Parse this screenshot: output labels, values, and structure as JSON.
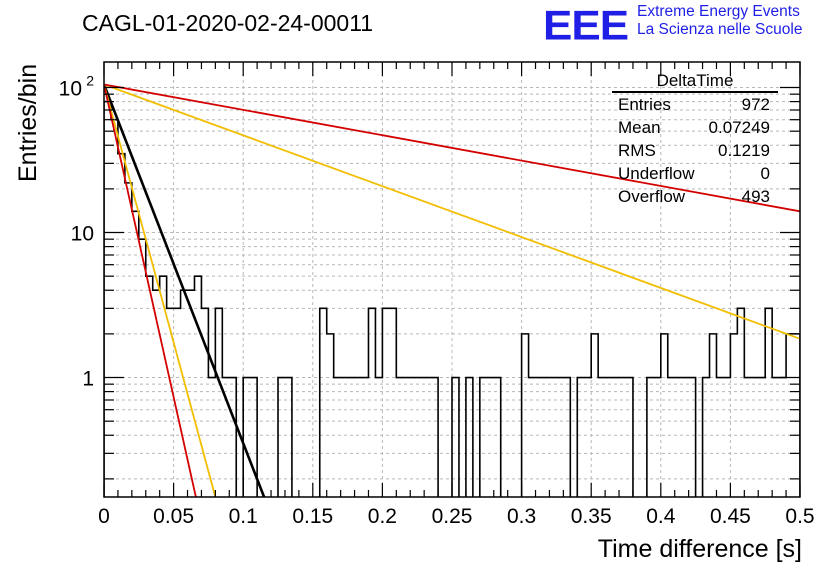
{
  "header": {
    "run_title": "CAGL-01-2020-02-24-00011",
    "logo": "EEE",
    "logo_line1": "Extreme Energy Events",
    "logo_line2": "La Scienza nelle Scuole"
  },
  "stats_box": {
    "title": "DeltaTime",
    "rows": [
      {
        "label": "Entries",
        "value": "972"
      },
      {
        "label": "Mean",
        "value": "0.07249"
      },
      {
        "label": "RMS",
        "value": "0.1219"
      },
      {
        "label": "Underflow",
        "value": "0"
      },
      {
        "label": "Overflow",
        "value": "493"
      }
    ]
  },
  "chart_data": {
    "type": "histogram",
    "xlabel": "Time difference [s]",
    "ylabel": "Entries/bin",
    "xlim": [
      0,
      0.5
    ],
    "ylim": [
      0.15,
      150
    ],
    "yscale": "log",
    "grid": true,
    "x_ticks": [
      "0",
      "0.05",
      "0.1",
      "0.15",
      "0.2",
      "0.25",
      "0.3",
      "0.35",
      "0.4",
      "0.45",
      "0.5"
    ],
    "y_ticks": [
      {
        "value": 1,
        "label": "1"
      },
      {
        "value": 10,
        "label": "10"
      },
      {
        "value": 100,
        "label": "10",
        "sup": "2"
      }
    ],
    "bin_width": 0.005,
    "bin_counts": [
      80,
      60,
      35,
      22,
      14,
      9,
      5,
      4,
      5,
      3,
      3,
      4,
      4,
      5,
      3,
      1,
      3,
      1,
      1,
      0,
      1,
      1,
      0,
      0,
      0,
      1,
      1,
      0,
      0,
      0,
      0,
      3,
      2,
      1,
      1,
      1,
      1,
      1,
      3,
      1,
      3,
      3,
      1,
      1,
      1,
      1,
      1,
      1,
      0,
      0,
      1,
      0,
      1,
      0,
      1,
      1,
      1,
      0,
      0,
      0,
      2,
      1,
      1,
      1,
      1,
      1,
      1,
      0,
      1,
      1,
      2,
      1,
      1,
      1,
      1,
      1,
      0,
      0,
      1,
      1,
      2,
      1,
      1,
      1,
      1,
      0,
      1,
      2,
      1,
      1,
      2,
      3,
      1,
      1,
      1,
      3,
      1,
      1,
      2,
      2
    ],
    "fit_lines": [
      {
        "color": "#000000",
        "x": [
          0,
          0.115
        ],
        "y": [
          105,
          0.15
        ]
      },
      {
        "color": "#f2be00",
        "x": [
          0,
          0.08
        ],
        "y": [
          105,
          0.15
        ]
      },
      {
        "color": "#d40000",
        "x": [
          0,
          0.066
        ],
        "y": [
          105,
          0.15
        ]
      },
      {
        "color": "#f2be00",
        "x": [
          0,
          0.5
        ],
        "y": [
          105,
          1.85
        ]
      },
      {
        "color": "#d40000",
        "x": [
          0,
          0.5
        ],
        "y": [
          105,
          14
        ]
      }
    ]
  }
}
